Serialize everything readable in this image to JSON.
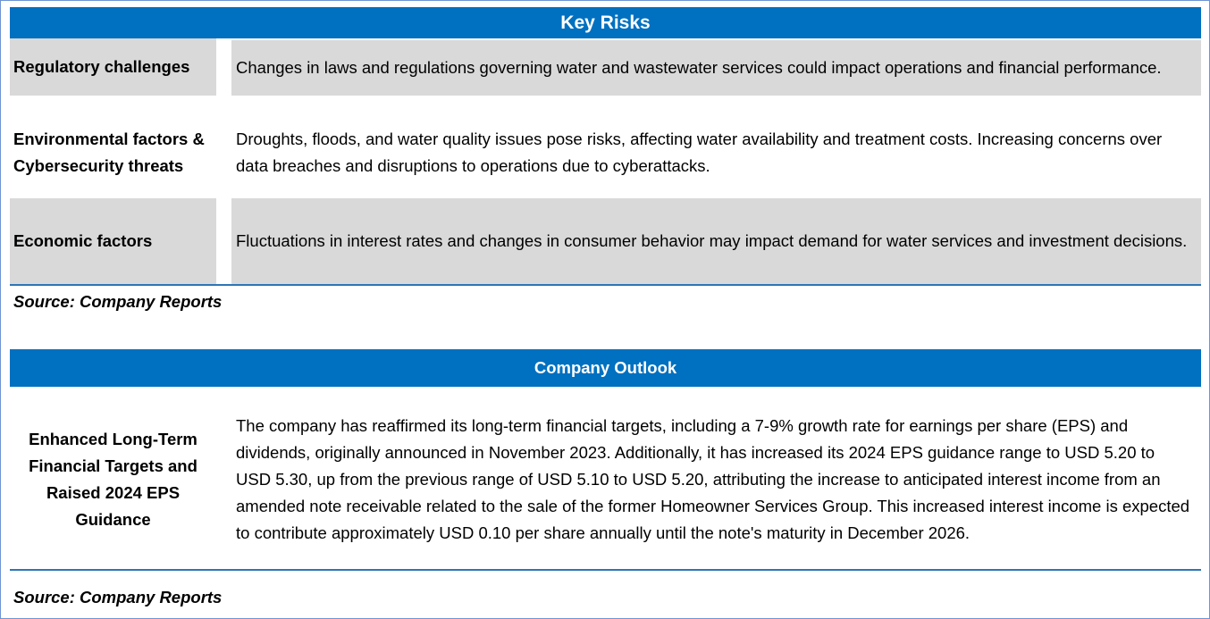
{
  "key_risks": {
    "title": "Key Risks",
    "rows": [
      {
        "label": "Regulatory challenges",
        "text": "Changes in laws and regulations governing water and wastewater services could impact operations and financial performance."
      },
      {
        "label": "Environmental factors & Cybersecurity threats",
        "text": "Droughts, floods, and water quality issues pose risks, affecting water availability and treatment costs. Increasing concerns over data breaches and disruptions to operations due to cyberattacks."
      },
      {
        "label": "Economic factors",
        "text": "Fluctuations in interest rates and changes in consumer behavior may impact demand for water services and investment decisions."
      }
    ],
    "source": "Source: Company Reports"
  },
  "outlook": {
    "title": "Company Outlook",
    "label": "Enhanced Long-Term Financial Targets and Raised 2024 EPS Guidance",
    "text": "The company has reaffirmed its long-term financial targets, including a 7-9% growth rate for earnings per share (EPS) and dividends, originally announced in November 2023. Additionally, it has increased its 2024 EPS guidance range to USD 5.20 to USD 5.30, up from the previous range of USD 5.10 to USD 5.20, attributing the increase to anticipated interest income from an amended note receivable related to the sale of the former Homeowner Services Group. This increased interest income is expected to contribute approximately USD 0.10 per share annually until the note's maturity in December 2026.",
    "source": "Source: Company Reports"
  }
}
